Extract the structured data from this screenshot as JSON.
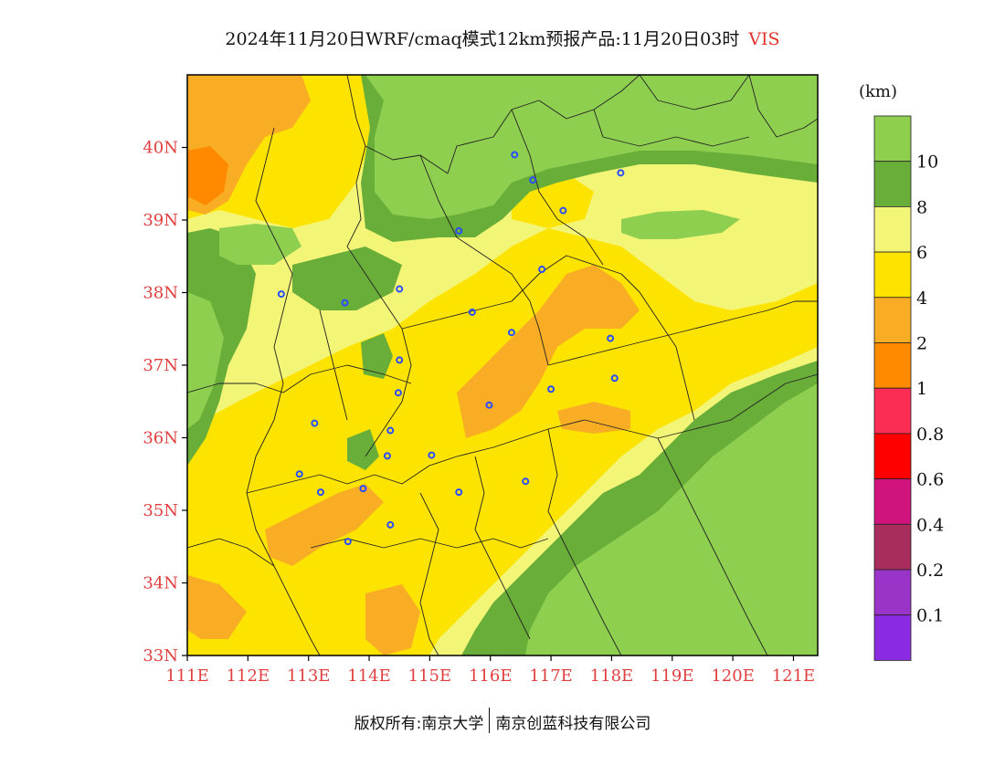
{
  "title": {
    "main": "2024年11月20日WRF/cmaq模式12km预报产品:11月20日03时",
    "variable": "VIS"
  },
  "legend": {
    "unit": "(km)",
    "levels": [
      {
        "label": "",
        "color": "#8ecf50"
      },
      {
        "label": "10",
        "color": "#6aae3a"
      },
      {
        "label": "8",
        "color": "#f3f576"
      },
      {
        "label": "6",
        "color": "#fde400"
      },
      {
        "label": "4",
        "color": "#f9ad25"
      },
      {
        "label": "2",
        "color": "#ff8a00"
      },
      {
        "label": "1",
        "color": "#fb2d55"
      },
      {
        "label": "0.8",
        "color": "#ff0000"
      },
      {
        "label": "0.6",
        "color": "#d1137d"
      },
      {
        "label": "0.4",
        "color": "#a82d5c"
      },
      {
        "label": "0.2",
        "color": "#9a34c9"
      },
      {
        "label": "0.1",
        "color": "#8a2be2"
      }
    ]
  },
  "axes": {
    "lat_labels": [
      "40N",
      "39N",
      "38N",
      "37N",
      "36N",
      "35N",
      "34N",
      "33N"
    ],
    "lon_labels": [
      "111E",
      "112E",
      "113E",
      "114E",
      "115E",
      "116E",
      "117E",
      "118E",
      "119E",
      "120E",
      "121E"
    ]
  },
  "copyright": {
    "left": "版权所有:南京大学",
    "right": "南京创蓝科技有限公司"
  },
  "colors": {
    "vis_gt10": "#8ecf50",
    "vis_8_10": "#6aae3a",
    "vis_6_8": "#f3f576",
    "vis_4_6": "#fde400",
    "vis_2_4": "#f9ad25",
    "vis_1_2": "#ff8a00",
    "city_marker": "#2a4cff"
  },
  "cities": [
    {
      "lon": 116.4,
      "lat": 39.9
    },
    {
      "lon": 116.7,
      "lat": 39.55
    },
    {
      "lon": 117.2,
      "lat": 39.13
    },
    {
      "lon": 118.15,
      "lat": 39.65
    },
    {
      "lon": 115.48,
      "lat": 38.85
    },
    {
      "lon": 116.85,
      "lat": 38.32
    },
    {
      "lon": 114.5,
      "lat": 38.05
    },
    {
      "lon": 113.6,
      "lat": 37.86
    },
    {
      "lon": 112.55,
      "lat": 37.98
    },
    {
      "lon": 115.7,
      "lat": 37.73
    },
    {
      "lon": 116.35,
      "lat": 37.45
    },
    {
      "lon": 117.98,
      "lat": 37.37
    },
    {
      "lon": 114.5,
      "lat": 37.07
    },
    {
      "lon": 118.05,
      "lat": 36.82
    },
    {
      "lon": 117.0,
      "lat": 36.67
    },
    {
      "lon": 114.48,
      "lat": 36.62
    },
    {
      "lon": 115.98,
      "lat": 36.45
    },
    {
      "lon": 113.1,
      "lat": 36.2
    },
    {
      "lon": 114.35,
      "lat": 36.1
    },
    {
      "lon": 114.3,
      "lat": 35.75
    },
    {
      "lon": 115.03,
      "lat": 35.76
    },
    {
      "lon": 116.58,
      "lat": 35.4
    },
    {
      "lon": 112.85,
      "lat": 35.5
    },
    {
      "lon": 113.9,
      "lat": 35.3
    },
    {
      "lon": 113.2,
      "lat": 35.25
    },
    {
      "lon": 115.48,
      "lat": 35.25
    },
    {
      "lon": 114.35,
      "lat": 34.8
    },
    {
      "lon": 113.65,
      "lat": 34.57
    }
  ]
}
